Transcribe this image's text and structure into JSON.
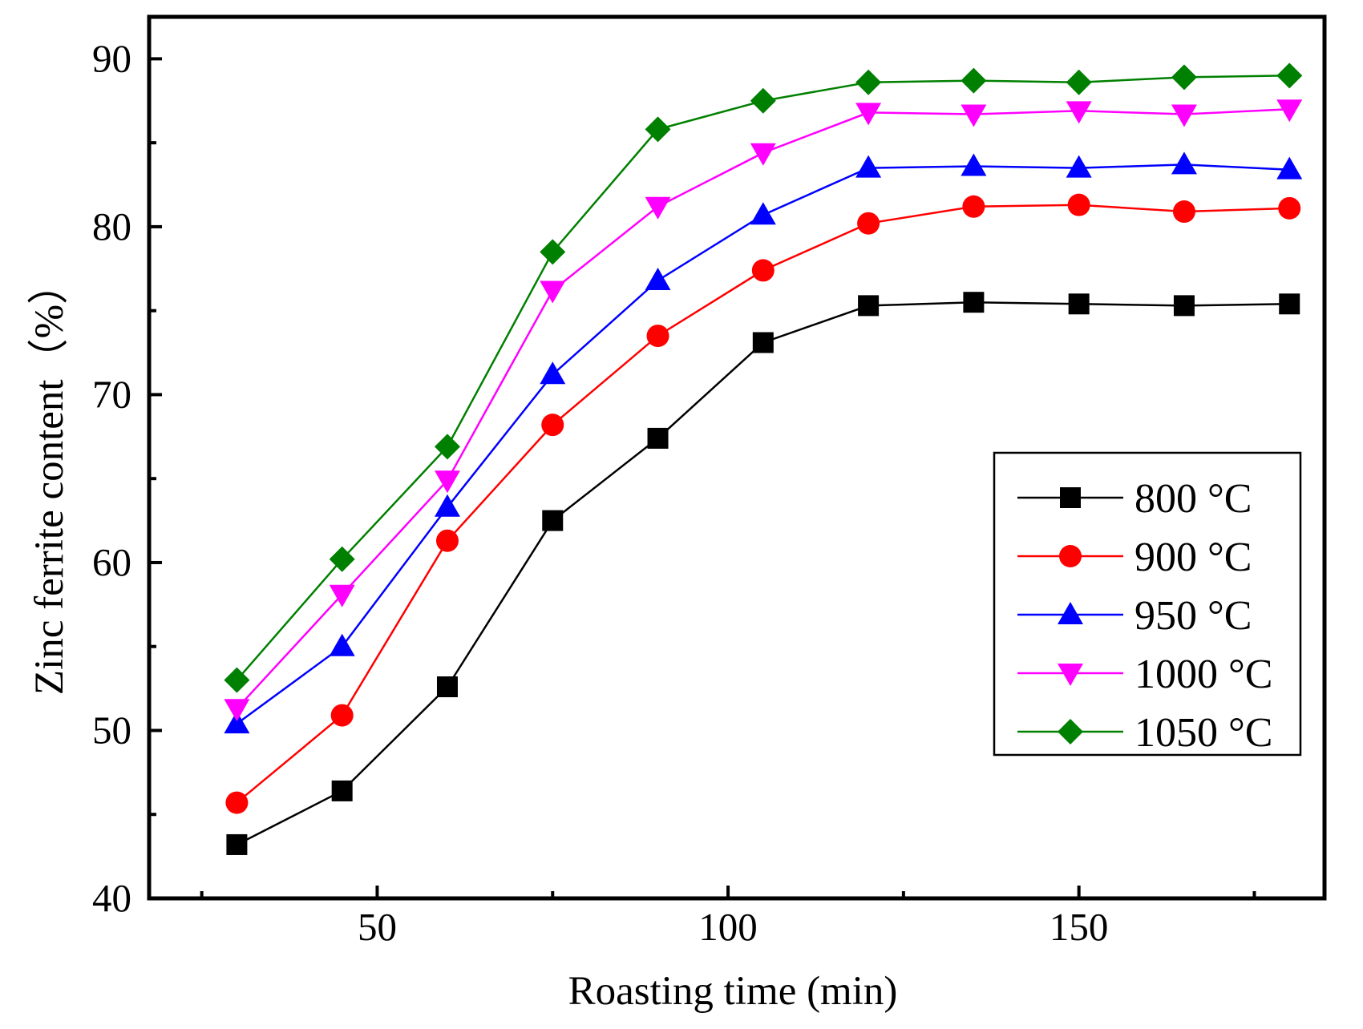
{
  "chart_data": {
    "type": "line",
    "title": "",
    "xlabel": "Roasting time (min)",
    "ylabel": "Zinc ferrite content（%）",
    "xlim": [
      17.5,
      185
    ],
    "ylim": [
      40,
      92.5
    ],
    "x_ticks": [
      50,
      100,
      150
    ],
    "x_minor_ticks": [
      25,
      75,
      125,
      175
    ],
    "y_ticks": [
      40,
      50,
      60,
      70,
      80,
      90
    ],
    "y_minor_ticks": [
      45,
      55,
      65,
      75,
      85
    ],
    "grid": false,
    "legend_position": "right",
    "x": [
      30,
      45,
      60,
      75,
      90,
      105,
      120,
      135,
      150,
      165,
      180
    ],
    "series": [
      {
        "name": "800 °C",
        "marker": "square",
        "color": "#000000",
        "values": [
          43.2,
          46.4,
          52.6,
          62.5,
          67.4,
          73.1,
          75.3,
          75.5,
          75.4,
          75.3,
          75.4
        ]
      },
      {
        "name": "900 °C",
        "marker": "circle",
        "color": "#ff0000",
        "values": [
          45.7,
          50.9,
          61.3,
          68.2,
          73.5,
          77.4,
          80.2,
          81.2,
          81.3,
          80.9,
          81.1
        ]
      },
      {
        "name": "950 °C",
        "marker": "triangle-up",
        "color": "#0000ff",
        "values": [
          50.4,
          55.0,
          63.3,
          71.2,
          76.8,
          80.7,
          83.5,
          83.6,
          83.5,
          83.7,
          83.4
        ]
      },
      {
        "name": "1000 °C",
        "marker": "triangle-down",
        "color": "#ff00ff",
        "values": [
          51.3,
          58.1,
          64.9,
          76.2,
          81.2,
          84.4,
          86.8,
          86.7,
          86.9,
          86.7,
          87.0
        ]
      },
      {
        "name": "1050 °C",
        "marker": "diamond",
        "color": "#008000",
        "values": [
          53.0,
          60.2,
          66.9,
          78.5,
          85.8,
          87.5,
          88.6,
          88.7,
          88.6,
          88.9,
          89.0
        ]
      }
    ]
  }
}
